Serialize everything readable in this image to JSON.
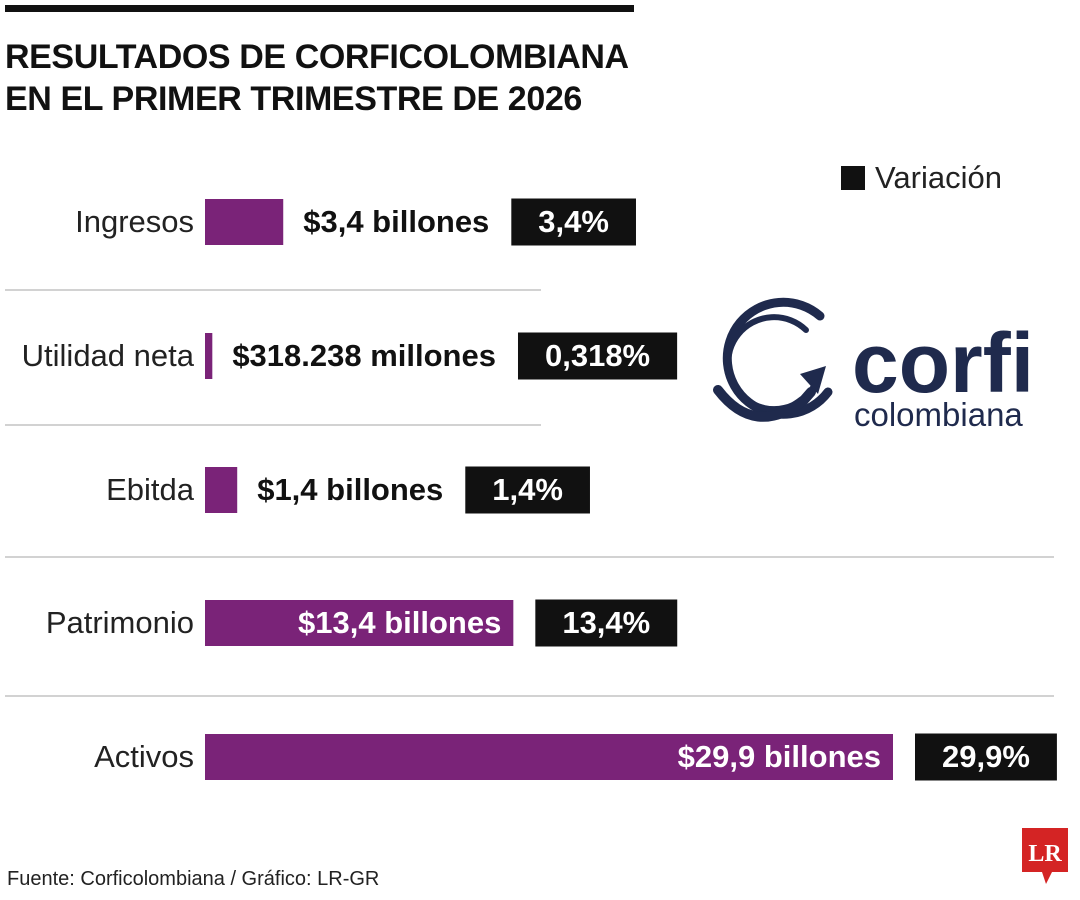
{
  "header": {
    "title_line1": "RESULTADOS DE CORFICOLOMBIANA",
    "title_line2": "EN EL PRIMER TRIMESTRE DE 2026"
  },
  "legend": {
    "label": "Variación"
  },
  "logo": {
    "wordmark": "corfi",
    "sub": "colombiana"
  },
  "footer": {
    "source": "Fuente: Corficolombiana / Gráfico: LR-GR",
    "badge": "LR"
  },
  "colors": {
    "bar": "#7a2378",
    "badge": "#111111",
    "badge_text": "#ffffff",
    "logo": "#1f2a4d",
    "lr": "#d42424"
  },
  "chart_data": {
    "type": "bar",
    "orientation": "horizontal",
    "unit": "billones COP",
    "categories": [
      "Ingresos",
      "Utilidad neta",
      "Ebitda",
      "Patrimonio",
      "Activos"
    ],
    "values": [
      3.4,
      0.318,
      1.4,
      13.4,
      29.9
    ],
    "value_labels": [
      "$3,4 billones",
      "$318.238 millones",
      "$1,4 billones",
      "$13,4 billones",
      "$29,9 billones"
    ],
    "variation_labels": [
      "3,4%",
      "0,318%",
      "1,4%",
      "13,4%",
      "29,9%"
    ],
    "legend": [
      "Variación"
    ],
    "grid": false
  }
}
